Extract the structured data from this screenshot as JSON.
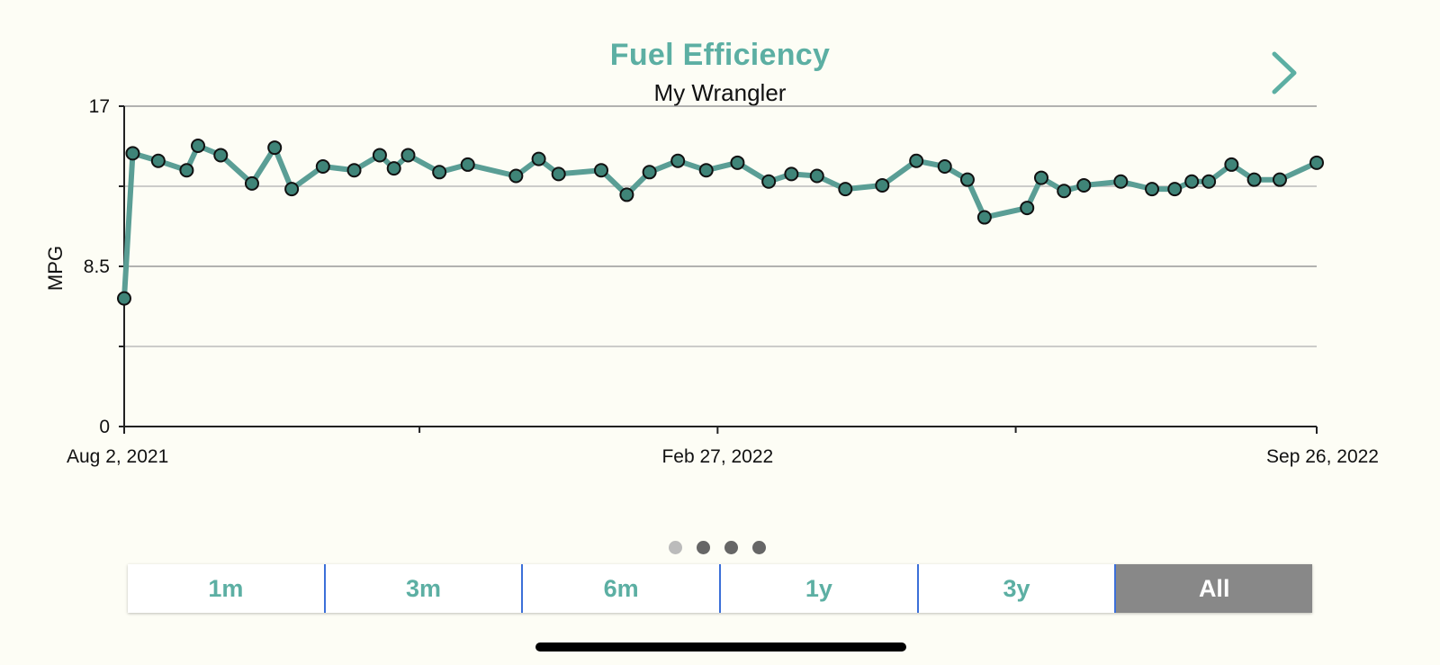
{
  "header": {
    "title": "Fuel Efficiency",
    "subtitle": "My Wrangler",
    "next_icon": "chevron-right-icon"
  },
  "pager": {
    "count": 4,
    "active_index": 0
  },
  "range_selector": {
    "options": [
      "1m",
      "3m",
      "6m",
      "1y",
      "3y",
      "All"
    ],
    "selected": "All"
  },
  "colors": {
    "accent": "#5CAFA3",
    "line": "#5A9E95",
    "marker_fill": "#3F8478",
    "selected_segment": "#888888",
    "segment_divider": "#3C6FD8"
  },
  "chart_data": {
    "type": "line",
    "ylabel": "MPG",
    "xlabel": "",
    "ylim": [
      0,
      17
    ],
    "y_ticks": [
      0,
      8.5,
      17
    ],
    "y_gridlines": [
      4.25,
      8.5,
      12.75,
      17
    ],
    "x_range": [
      "2021-08-02",
      "2022-09-26"
    ],
    "x_tick_labels": [
      {
        "date": "2021-08-02",
        "label": "Aug 2, 2021"
      },
      {
        "date": "2022-02-27",
        "label": "Feb 27, 2022"
      },
      {
        "date": "2022-09-26",
        "label": "Sep 26, 2022"
      }
    ],
    "x_minor_ticks": [
      "2021-11-14",
      "2022-06-12"
    ],
    "series": [
      {
        "x": [
          "2021-08-02",
          "2021-08-05",
          "2021-08-14",
          "2021-08-24",
          "2021-08-28",
          "2021-09-05",
          "2021-09-16",
          "2021-09-24",
          "2021-09-30",
          "2021-10-11",
          "2021-10-22",
          "2021-10-31",
          "2021-11-05",
          "2021-11-10",
          "2021-11-21",
          "2021-12-01",
          "2021-12-18",
          "2021-12-26",
          "2022-01-02",
          "2022-01-17",
          "2022-01-26",
          "2022-02-03",
          "2022-02-13",
          "2022-02-23",
          "2022-03-06",
          "2022-03-17",
          "2022-03-25",
          "2022-04-03",
          "2022-04-13",
          "2022-04-26",
          "2022-05-08",
          "2022-05-18",
          "2022-05-26",
          "2022-06-01",
          "2022-06-16",
          "2022-06-21",
          "2022-06-29",
          "2022-07-06",
          "2022-07-19",
          "2022-07-30",
          "2022-08-07",
          "2022-08-13",
          "2022-08-19",
          "2022-08-27",
          "2022-09-04",
          "2022-09-13",
          "2022-09-26"
        ],
        "values": [
          6.8,
          14.5,
          14.1,
          13.6,
          14.9,
          14.4,
          12.9,
          14.8,
          12.6,
          13.8,
          13.6,
          14.4,
          13.7,
          14.4,
          13.5,
          13.9,
          13.3,
          14.2,
          13.4,
          13.6,
          12.3,
          13.5,
          14.1,
          13.6,
          14.0,
          13.0,
          13.4,
          13.3,
          12.6,
          12.8,
          14.1,
          13.8,
          13.1,
          11.1,
          11.6,
          13.2,
          12.5,
          12.8,
          13.0,
          12.6,
          12.6,
          13.0,
          13.0,
          13.9,
          13.1,
          13.1,
          14.0
        ],
        "note_removed": true
      }
    ]
  }
}
